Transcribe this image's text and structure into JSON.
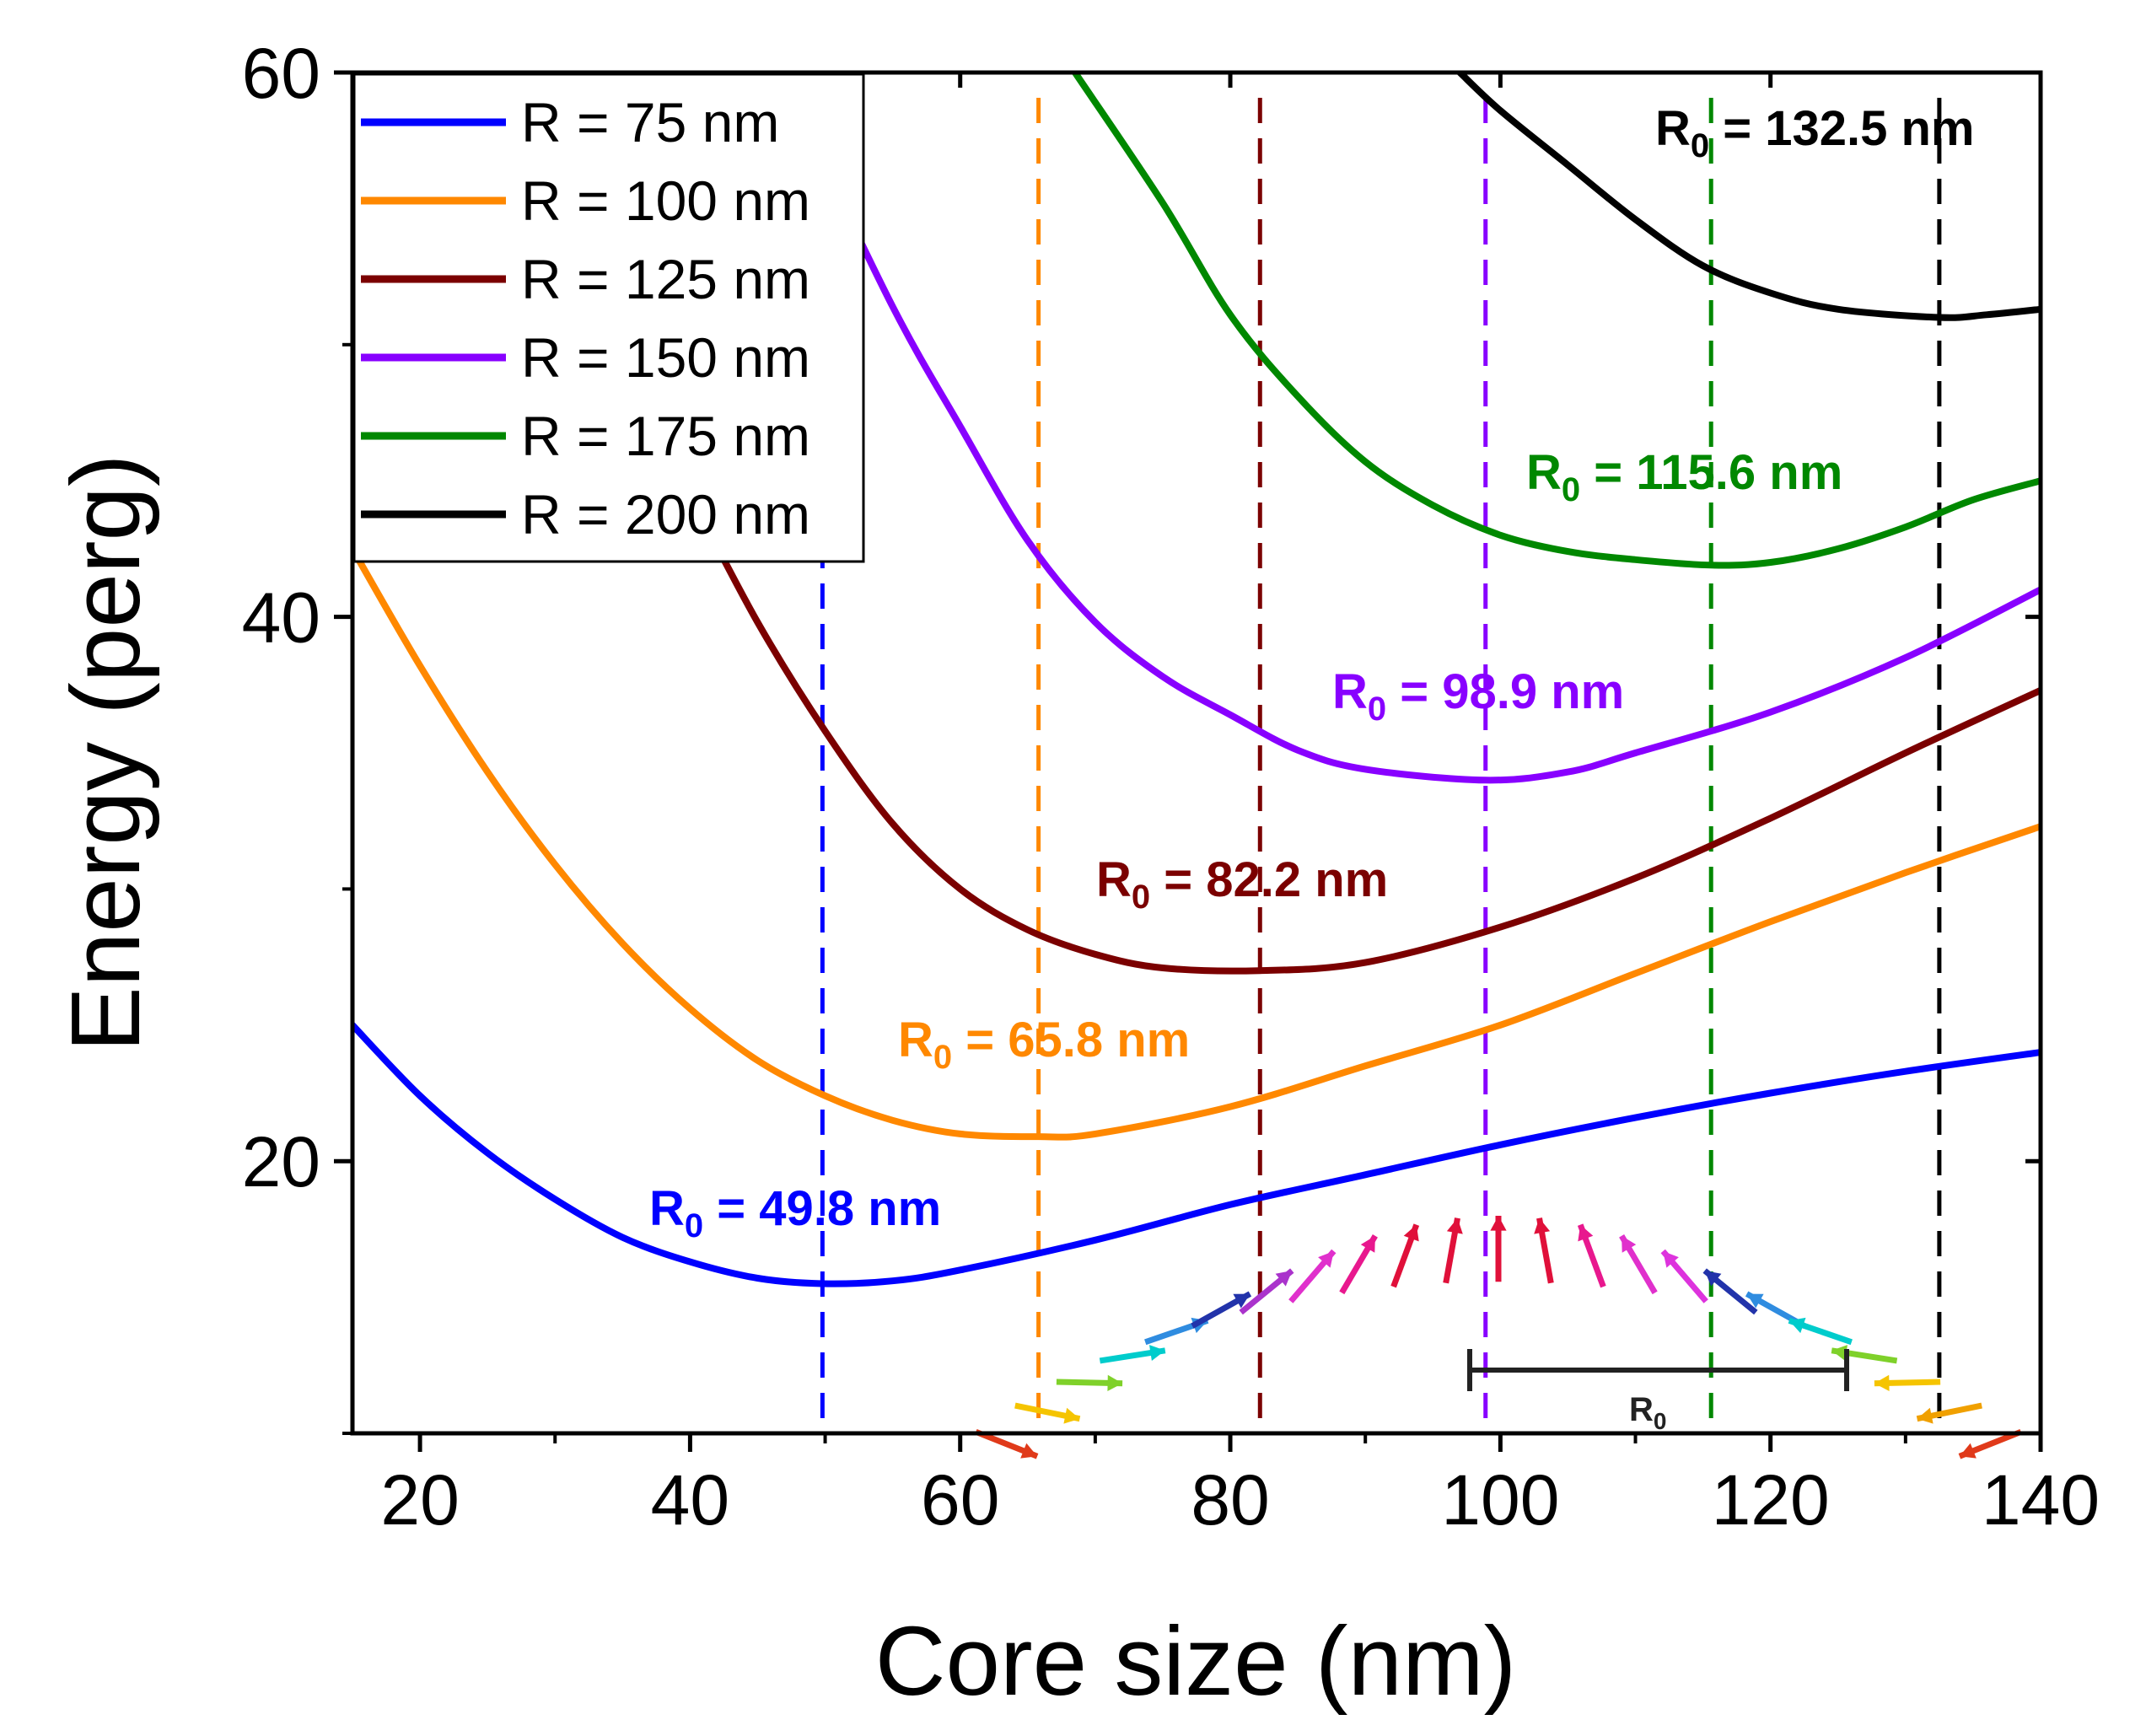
{
  "chart_data": {
    "type": "line",
    "xlabel": "Core size (nm)",
    "ylabel": "Energy (perg)",
    "xlim": [
      15,
      140
    ],
    "ylim": [
      10,
      60
    ],
    "x_ticks": [
      20,
      40,
      60,
      80,
      100,
      120,
      140
    ],
    "y_ticks": [
      20,
      40,
      60
    ],
    "x_tick_labels": [
      "20",
      "40",
      "60",
      "80",
      "100",
      "120",
      "140"
    ],
    "y_tick_labels": [
      "20",
      "40",
      "60"
    ],
    "legend_position": "top-left",
    "series": [
      {
        "name": "R = 75 nm",
        "color": "#0000ff",
        "r0": 49.8,
        "r0_label": "R",
        "r0_sub": "0",
        "r0_value": " = 49.8 nm",
        "x": [
          15,
          20,
          25,
          30,
          35,
          40,
          45,
          49.8,
          55,
          60,
          70,
          80,
          90,
          100,
          110,
          120,
          130,
          140
        ],
        "y": [
          25,
          22.4,
          20.3,
          18.6,
          17.2,
          16.3,
          15.7,
          15.5,
          15.6,
          16.0,
          17.1,
          18.4,
          19.5,
          20.6,
          21.6,
          22.5,
          23.3,
          24.0
        ]
      },
      {
        "name": "R = 100 nm",
        "color": "#ff8800",
        "r0": 65.8,
        "r0_label": "R",
        "r0_sub": "0",
        "r0_value": " = 65.8 nm",
        "x": [
          15,
          20,
          25,
          30,
          35,
          40,
          45,
          50,
          55,
          60,
          65.8,
          70,
          80,
          90,
          100,
          110,
          120,
          130,
          140
        ],
        "y": [
          42.5,
          38.2,
          34.3,
          30.9,
          28.0,
          25.6,
          23.7,
          22.4,
          21.5,
          21.0,
          20.9,
          21.0,
          22.0,
          23.5,
          25.0,
          26.9,
          28.8,
          30.6,
          32.3
        ]
      },
      {
        "name": "R = 125 nm",
        "color": "#7b0000",
        "r0": 82.2,
        "r0_label": "R",
        "r0_sub": "0",
        "r0_value": " = 82.2 nm",
        "x": [
          40,
          45,
          50,
          55,
          60,
          65,
          70,
          75,
          82.2,
          90,
          100,
          110,
          120,
          130,
          140
        ],
        "y": [
          44.5,
          39.8,
          35.8,
          32.4,
          30.0,
          28.5,
          27.6,
          27.1,
          27.0,
          27.3,
          28.6,
          30.4,
          32.6,
          35.0,
          37.3
        ]
      },
      {
        "name": "R = 150 nm",
        "color": "#8800ff",
        "r0": 98.9,
        "r0_label": "R",
        "r0_sub": "0",
        "r0_value": " = 98.9 nm",
        "x": [
          48,
          55,
          60,
          65,
          70,
          75,
          80,
          85,
          90,
          98.9,
          105,
          110,
          120,
          130,
          140
        ],
        "y": [
          58.6,
          51.4,
          47.0,
          42.8,
          39.8,
          37.8,
          36.4,
          35.1,
          34.4,
          34.0,
          34.3,
          35.0,
          36.5,
          38.5,
          41.0
        ]
      },
      {
        "name": "R = 175 nm",
        "color": "#008800",
        "r0": 115.6,
        "r0_label": "R",
        "r0_sub": "0",
        "r0_value": " = 115.6 nm",
        "x": [
          68.5,
          75,
          80,
          85,
          90,
          95,
          100,
          105,
          110,
          115.6,
          120,
          125,
          130,
          135,
          140
        ],
        "y": [
          60,
          55.2,
          51.1,
          48.1,
          45.7,
          44.1,
          43.0,
          42.4,
          42.1,
          41.9,
          42.0,
          42.5,
          43.3,
          44.3,
          45.0
        ]
      },
      {
        "name": "R = 200 nm",
        "color": "#000000",
        "r0": 132.5,
        "r0_label": "R",
        "r0_sub": "0",
        "r0_value": " = 132.5 nm",
        "x": [
          97,
          100,
          105,
          110,
          115,
          120,
          125,
          132.5,
          136,
          140
        ],
        "y": [
          60,
          58.6,
          56.6,
          54.6,
          52.9,
          51.9,
          51.3,
          51.0,
          51.1,
          51.3
        ]
      }
    ],
    "inset": {
      "scale_label": "R",
      "scale_sub": "0"
    }
  }
}
